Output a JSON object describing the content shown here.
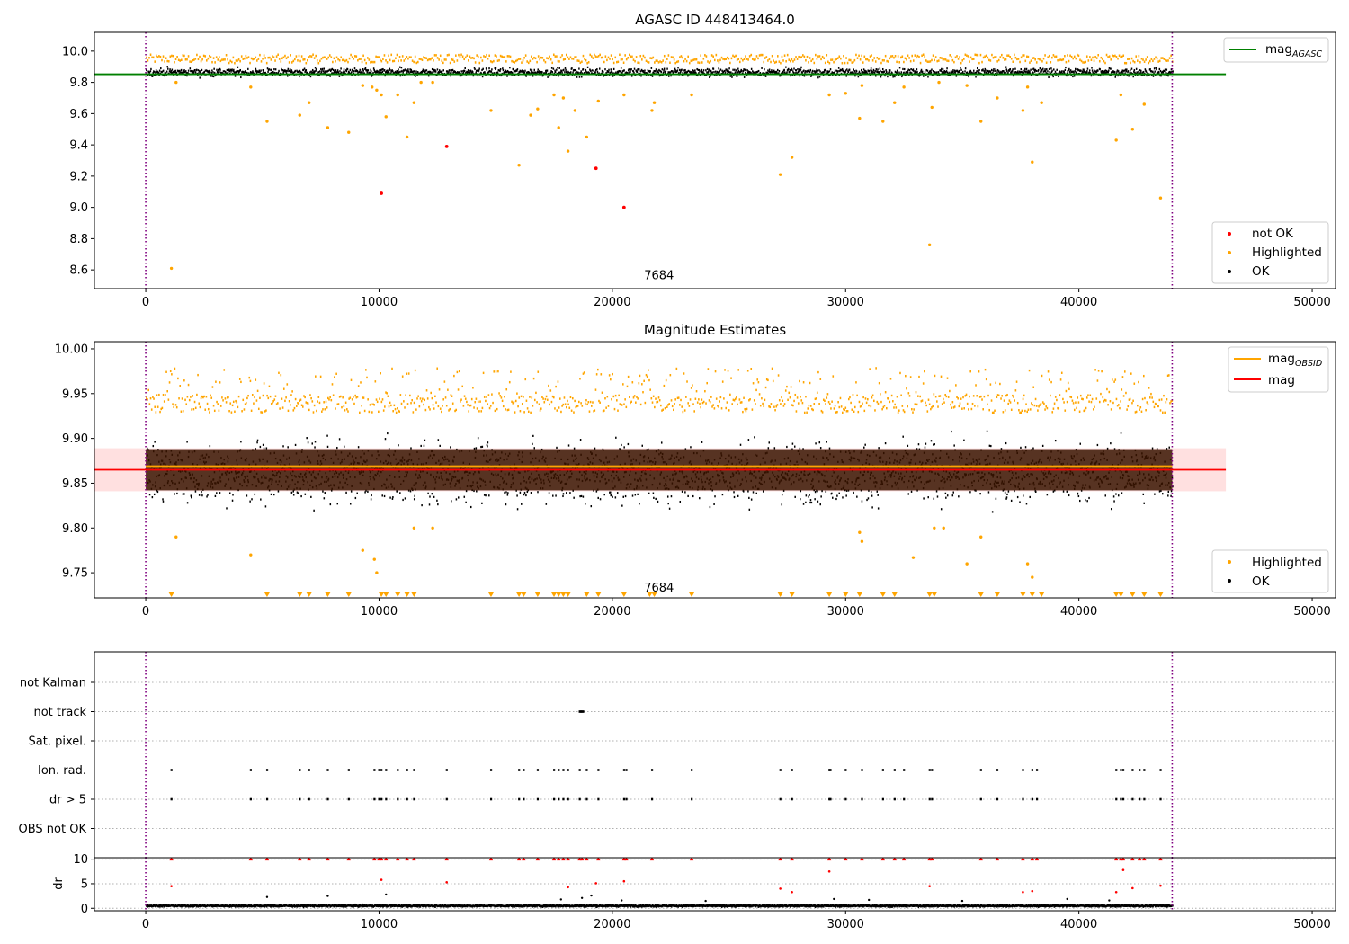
{
  "colors": {
    "ok": "#000000",
    "highlighted": "#ffa500",
    "not_ok": "#ff0000",
    "mag_agasc": "#008000",
    "mag_obsid": "#ffa500",
    "mag": "#ff0000",
    "band": "#ffd5d5",
    "vline": "#800080"
  },
  "chart_data": [
    {
      "type": "scatter",
      "title": "AGASC ID 448413464.0",
      "xlim": [
        -2200,
        51000
      ],
      "ylim": [
        8.48,
        10.12
      ],
      "xticks": [
        0,
        10000,
        20000,
        30000,
        40000,
        50000
      ],
      "xtick_labels": [
        "0",
        "10000",
        "20000",
        "30000",
        "40000",
        "50000"
      ],
      "yticks": [
        8.6,
        8.8,
        9.0,
        9.2,
        9.4,
        9.6,
        9.8,
        10.0
      ],
      "ytick_labels": [
        "8.6",
        "8.8",
        "9.0",
        "9.2",
        "9.4",
        "9.6",
        "9.8",
        "10.0"
      ],
      "vlines": [
        0,
        44000
      ],
      "hlines": [
        {
          "name": "mag_agasc",
          "y": 9.852,
          "x": [
            -2200,
            46300
          ]
        }
      ],
      "annotation": {
        "text": "7684",
        "x": 22000,
        "y": 8.54
      },
      "legend_lines": [
        {
          "label": "mag",
          "sub": "AGASC",
          "color": "#008000",
          "position": "top-right"
        }
      ],
      "legend_points": [
        {
          "label": "not OK",
          "color": "#ff0000"
        },
        {
          "label": "Highlighted",
          "color": "#ffa500"
        },
        {
          "label": "OK",
          "color": "#000000"
        }
      ],
      "band_ok": {
        "x": [
          0,
          44000
        ],
        "y_center": 9.865,
        "y_spread": 0.03
      },
      "band_high": {
        "y": [
          9.93,
          9.98
        ],
        "description": "spikes above the OK band"
      },
      "series": [
        {
          "name": "Highlighted",
          "x": [
            1100,
            1300,
            4500,
            5200,
            6600,
            7000,
            7800,
            8700,
            9300,
            9700,
            9900,
            10100,
            10300,
            10800,
            11200,
            11500,
            11800,
            12300,
            14800,
            16000,
            16500,
            16800,
            17500,
            17700,
            17900,
            18100,
            18400,
            18900,
            19400,
            20500,
            21700,
            21800,
            23400,
            27200,
            27700,
            29300,
            30000,
            30600,
            30700,
            31600,
            32100,
            32500,
            33600,
            33700,
            34000,
            35200,
            35800,
            36500,
            37600,
            37800,
            38000,
            38400,
            41600,
            41800,
            42300,
            42800,
            43500
          ],
          "y": [
            8.61,
            9.8,
            9.77,
            9.55,
            9.59,
            9.67,
            9.51,
            9.48,
            9.78,
            9.77,
            9.75,
            9.72,
            9.58,
            9.72,
            9.45,
            9.67,
            9.8,
            9.8,
            9.62,
            9.27,
            9.59,
            9.63,
            9.72,
            9.51,
            9.7,
            9.36,
            9.62,
            9.45,
            9.68,
            9.72,
            9.62,
            9.67,
            9.72,
            9.21,
            9.32,
            9.72,
            9.73,
            9.57,
            9.78,
            9.55,
            9.67,
            9.77,
            8.76,
            9.64,
            9.8,
            9.78,
            9.55,
            9.7,
            9.62,
            9.77,
            9.29,
            9.67,
            9.43,
            9.72,
            9.5,
            9.66,
            9.06
          ]
        },
        {
          "name": "not OK",
          "x": [
            10100,
            12900,
            19300,
            20500
          ],
          "y": [
            9.09,
            9.39,
            9.25,
            9.0
          ]
        }
      ]
    },
    {
      "type": "scatter",
      "title": "Magnitude Estimates",
      "xlim": [
        -2200,
        51000
      ],
      "ylim": [
        9.722,
        10.008
      ],
      "xticks": [
        0,
        10000,
        20000,
        30000,
        40000,
        50000
      ],
      "xtick_labels": [
        "0",
        "10000",
        "20000",
        "30000",
        "40000",
        "50000"
      ],
      "yticks": [
        9.75,
        9.8,
        9.85,
        9.9,
        9.95,
        10.0
      ],
      "ytick_labels": [
        "9.75",
        "9.80",
        "9.85",
        "9.90",
        "9.95",
        "10.00"
      ],
      "vlines": [
        0,
        44000
      ],
      "hlines": [
        {
          "name": "mag_obsid",
          "y": 9.869,
          "x": [
            0,
            44000
          ]
        },
        {
          "name": "mag",
          "y": 9.865,
          "x": [
            -2200,
            46300
          ]
        }
      ],
      "mag_band": [
        9.841,
        9.889
      ],
      "annotation": {
        "text": "7684",
        "x": 22000,
        "y": 9.729
      },
      "legend_lines": [
        {
          "label": "mag",
          "sub": "OBSID",
          "color": "#ffa500"
        },
        {
          "label": "mag",
          "sub": "",
          "color": "#ff0000"
        }
      ],
      "legend_points": [
        {
          "label": "Highlighted",
          "color": "#ffa500"
        },
        {
          "label": "OK",
          "color": "#000000"
        }
      ],
      "band_ok": {
        "x": [
          0,
          44000
        ],
        "y_center": 9.862,
        "y_spread": 0.035
      },
      "band_high": {
        "y": [
          9.93,
          9.985
        ]
      },
      "series": [
        {
          "name": "Highlighted",
          "x": [
            1300,
            4500,
            9300,
            9800,
            9900,
            11500,
            12300,
            30600,
            30700,
            32900,
            33800,
            34200,
            35200,
            35800,
            37800,
            38000
          ],
          "y": [
            9.79,
            9.77,
            9.775,
            9.765,
            9.75,
            9.8,
            9.8,
            9.795,
            9.785,
            9.767,
            9.8,
            9.8,
            9.76,
            9.79,
            9.76,
            9.745
          ]
        },
        {
          "name": "Highlighted (clipped)",
          "x": [
            1100,
            5200,
            6600,
            7000,
            7800,
            8700,
            10100,
            10300,
            10800,
            11200,
            11500,
            14800,
            16000,
            16200,
            16800,
            17500,
            17700,
            17900,
            18100,
            18900,
            19400,
            20500,
            21600,
            21800,
            23400,
            27200,
            27700,
            29300,
            30000,
            30600,
            31600,
            32100,
            33600,
            33800,
            35800,
            36500,
            37600,
            38000,
            38400,
            41600,
            41800,
            42300,
            42800,
            43500
          ],
          "y": [
            9.725,
            9.725,
            9.725,
            9.725,
            9.725,
            9.725,
            9.725,
            9.725,
            9.725,
            9.725,
            9.725,
            9.725,
            9.725,
            9.725,
            9.725,
            9.725,
            9.725,
            9.725,
            9.725,
            9.725,
            9.725,
            9.725,
            9.725,
            9.725,
            9.725,
            9.725,
            9.725,
            9.725,
            9.725,
            9.725,
            9.725,
            9.725,
            9.725,
            9.725,
            9.725,
            9.725,
            9.725,
            9.725,
            9.725,
            9.725,
            9.725,
            9.725,
            9.725,
            9.725
          ]
        }
      ]
    },
    {
      "type": "scatter",
      "xlim": [
        -2200,
        51000
      ],
      "categories": [
        "not Kalman",
        "not track",
        "Sat. pixel.",
        "Ion. rad.",
        "dr > 5",
        "OBS not OK"
      ],
      "vlines": [
        0,
        44000
      ],
      "series": [
        {
          "name": "not track",
          "x": [
            18600,
            18650,
            18700,
            18750
          ],
          "category": "not track"
        },
        {
          "name": "Ion. rad.",
          "x": [
            1100,
            4500,
            5200,
            6600,
            7000,
            7800,
            8700,
            9800,
            10000,
            10100,
            10300,
            10800,
            11200,
            11500,
            12900,
            14800,
            16000,
            16200,
            16800,
            17500,
            17700,
            17900,
            18100,
            18600,
            18900,
            19400,
            20500,
            20600,
            21700,
            23400,
            27200,
            27700,
            29300,
            29350,
            30000,
            30700,
            31600,
            32100,
            32500,
            33600,
            33700,
            35800,
            36500,
            37600,
            38000,
            38200,
            41600,
            41800,
            41900,
            42300,
            42600,
            42800,
            43500
          ],
          "category": "Ion. rad."
        },
        {
          "name": "dr > 5",
          "x": [
            1100,
            4500,
            5200,
            6600,
            7000,
            7800,
            8700,
            9800,
            10000,
            10100,
            10300,
            10800,
            11200,
            11500,
            12900,
            14800,
            16000,
            16200,
            16800,
            17500,
            17700,
            17900,
            18100,
            18600,
            18900,
            19400,
            20500,
            20600,
            21700,
            23400,
            27200,
            27700,
            29300,
            29350,
            30000,
            30700,
            31600,
            32100,
            32500,
            33600,
            33700,
            35800,
            36500,
            37600,
            38000,
            38200,
            41600,
            41800,
            41900,
            42300,
            42600,
            42800,
            43500
          ],
          "category": "dr > 5"
        }
      ]
    },
    {
      "type": "scatter",
      "ylabel": "dr",
      "xlim": [
        -2200,
        51000
      ],
      "ylim": [
        -0.5,
        10.3
      ],
      "xticks": [
        0,
        10000,
        20000,
        30000,
        40000,
        50000
      ],
      "xtick_labels": [
        "0",
        "10000",
        "20000",
        "30000",
        "40000",
        "50000"
      ],
      "yticks": [
        0,
        5,
        10
      ],
      "ytick_labels": [
        "0",
        "5",
        "10"
      ],
      "vlines": [
        0,
        44000
      ],
      "band_ok": {
        "x": [
          0,
          44000
        ],
        "y": [
          0.1,
          0.9
        ]
      },
      "series": [
        {
          "name": "dr (red)",
          "x": [
            1100,
            4500,
            5200,
            6600,
            7000,
            7800,
            8700,
            9800,
            10000,
            10100,
            10300,
            10800,
            11200,
            11500,
            12900,
            14800,
            16000,
            16200,
            16800,
            17500,
            17700,
            17900,
            18100,
            18600,
            18700,
            18900,
            19400,
            20500,
            20600,
            21700,
            23400,
            27200,
            27700,
            29300,
            30000,
            30700,
            31600,
            32100,
            32500,
            33600,
            33700,
            35800,
            36500,
            37600,
            38000,
            38200,
            41600,
            41800,
            41900,
            42300,
            42600,
            42800,
            43500
          ],
          "y": [
            10,
            10,
            10,
            10,
            10,
            10,
            10,
            10,
            10,
            10,
            10,
            10,
            10,
            10,
            10,
            10,
            10,
            10,
            10,
            10,
            10,
            10,
            10,
            10,
            10,
            10,
            10,
            10,
            10,
            10,
            10,
            10,
            10,
            10,
            10,
            10,
            10,
            10,
            10,
            10,
            10,
            10,
            10,
            10,
            10,
            10,
            10,
            10,
            10,
            10,
            10,
            10,
            10
          ]
        },
        {
          "name": "dr (red, mid)",
          "x": [
            1100,
            10100,
            12900,
            18100,
            19300,
            20500,
            27200,
            27700,
            29300,
            33600,
            37600,
            38000,
            41600,
            41900,
            42300,
            43500
          ],
          "y": [
            4.5,
            5.8,
            5.3,
            4.3,
            5.1,
            5.5,
            4.0,
            3.3,
            7.5,
            4.5,
            3.3,
            3.5,
            3.3,
            7.8,
            4.1,
            4.6
          ]
        },
        {
          "name": "dr (black, scattered)",
          "x": [
            5200,
            7800,
            10300,
            17800,
            18700,
            19100,
            20400,
            24000,
            29500,
            31000,
            35000,
            39500,
            41300
          ],
          "y": [
            2.3,
            2.5,
            2.8,
            1.8,
            2.1,
            2.6,
            1.6,
            1.5,
            1.9,
            1.7,
            1.5,
            1.9,
            1.6
          ]
        }
      ]
    }
  ]
}
